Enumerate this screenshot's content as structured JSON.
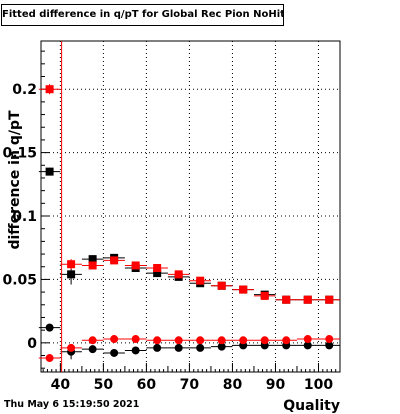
{
  "footer": "Thu May  6 15:19:50 2021",
  "chart_data": {
    "type": "scatter",
    "title": "Fitted difference in q/pT for Global Rec Pion NoHits",
    "xlabel": "Quality",
    "ylabel": "difference in q/pT",
    "xlim": [
      35.5,
      105
    ],
    "ylim": [
      -0.023,
      0.238
    ],
    "xticks": [
      40,
      50,
      60,
      70,
      80,
      90,
      100
    ],
    "yticks": [
      0,
      0.05,
      0.1,
      0.15,
      0.2
    ],
    "ytick_labels": [
      "0",
      "0.05",
      "0.1",
      "0.15",
      "0.2"
    ],
    "grid": true,
    "series": [
      {
        "color": "#000000",
        "marker": "square",
        "x": [
          37.5,
          42.5,
          47.5,
          52.5,
          57.5,
          62.5,
          67.5,
          72.5,
          77.5,
          82.5,
          87.5,
          92.5,
          97.5,
          102.5
        ],
        "y": [
          0.135,
          0.054,
          0.066,
          0.067,
          0.059,
          0.055,
          0.052,
          0.047,
          0.045,
          0.042,
          0.038,
          0.034,
          0.034,
          0.034
        ],
        "yerr": [
          0.003,
          0.008,
          0.003,
          0.002,
          0.002,
          0.002,
          0.001,
          0.001,
          0.001,
          0.001,
          0.001,
          0.001,
          0.001,
          0.001
        ]
      },
      {
        "color": "#ff0000",
        "marker": "square",
        "x": [
          37.5,
          42.5,
          47.5,
          52.5,
          57.5,
          62.5,
          67.5,
          72.5,
          77.5,
          82.5,
          87.5,
          92.5,
          97.5,
          102.5
        ],
        "y": [
          0.2,
          0.062,
          0.061,
          0.065,
          0.061,
          0.059,
          0.054,
          0.049,
          0.045,
          0.042,
          0.037,
          0.034,
          0.034,
          0.034
        ],
        "yerr": [
          0.004,
          0.004,
          0.002,
          0.002,
          0.002,
          0.002,
          0.001,
          0.001,
          0.001,
          0.001,
          0.001,
          0.001,
          0.001,
          0.001
        ]
      },
      {
        "color": "#000000",
        "marker": "circle",
        "x": [
          37.5,
          42.5,
          47.5,
          52.5,
          57.5,
          62.5,
          67.5,
          72.5,
          77.5,
          82.5,
          87.5,
          92.5,
          97.5,
          102.5
        ],
        "y": [
          0.012,
          -0.007,
          -0.005,
          -0.008,
          -0.006,
          -0.004,
          -0.004,
          -0.004,
          -0.003,
          -0.002,
          -0.002,
          -0.002,
          -0.002,
          -0.002
        ],
        "yerr": [
          0.003,
          0.006,
          0.002,
          0.001,
          0.001,
          0.001,
          0.001,
          0.001,
          0.001,
          0.001,
          0.001,
          0.001,
          0.001,
          0.001
        ]
      },
      {
        "color": "#ff0000",
        "marker": "circle",
        "x": [
          37.5,
          42.5,
          47.5,
          52.5,
          57.5,
          62.5,
          67.5,
          72.5,
          77.5,
          82.5,
          87.5,
          92.5,
          97.5,
          102.5
        ],
        "y": [
          -0.012,
          -0.004,
          0.002,
          0.003,
          0.003,
          0.002,
          0.002,
          0.002,
          0.002,
          0.002,
          0.002,
          0.002,
          0.003,
          0.003
        ],
        "yerr": [
          0.003,
          0.003,
          0.001,
          0.001,
          0.001,
          0.001,
          0.001,
          0.001,
          0.001,
          0.001,
          0.001,
          0.001,
          0.001,
          0.001
        ]
      }
    ]
  }
}
